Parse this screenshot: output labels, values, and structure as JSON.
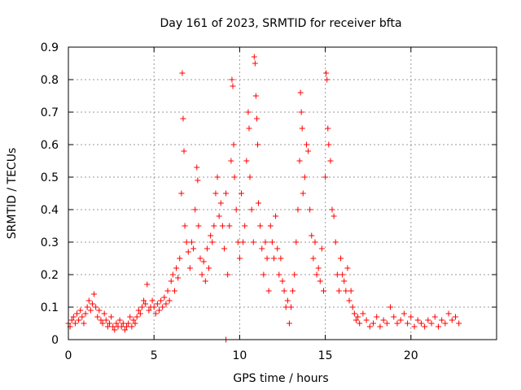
{
  "chart_data": {
    "type": "scatter",
    "title": "Day 161 of 2023, SRMTID for receiver bfta",
    "xlabel": "GPS time / hours",
    "ylabel": "SRMTID / TECUs",
    "xlim": [
      0,
      25
    ],
    "ylim": [
      0,
      0.9
    ],
    "x_ticks": [
      0,
      5,
      10,
      15,
      20
    ],
    "y_ticks": [
      0,
      0.1,
      0.2,
      0.3,
      0.4,
      0.5,
      0.6,
      0.7,
      0.8,
      0.9
    ],
    "x_tick_labels": [
      "0",
      "5",
      "10",
      "15",
      "20"
    ],
    "y_tick_labels": [
      "0",
      "0.1",
      "0.2",
      "0.3",
      "0.4",
      "0.5",
      "0.6",
      "0.7",
      "0.8",
      "0.9"
    ],
    "grid": true,
    "marker": "+",
    "marker_color": "#ff0000",
    "series": [
      {
        "name": "SRMTID",
        "color": "#ff0000",
        "points": [
          [
            0.0,
            0.05
          ],
          [
            0.1,
            0.04
          ],
          [
            0.2,
            0.06
          ],
          [
            0.3,
            0.07
          ],
          [
            0.4,
            0.05
          ],
          [
            0.5,
            0.08
          ],
          [
            0.6,
            0.06
          ],
          [
            0.7,
            0.09
          ],
          [
            0.8,
            0.07
          ],
          [
            0.9,
            0.05
          ],
          [
            1.0,
            0.08
          ],
          [
            1.1,
            0.1
          ],
          [
            1.2,
            0.12
          ],
          [
            1.3,
            0.09
          ],
          [
            1.4,
            0.11
          ],
          [
            1.5,
            0.14
          ],
          [
            1.6,
            0.1
          ],
          [
            1.7,
            0.07
          ],
          [
            1.8,
            0.09
          ],
          [
            1.9,
            0.06
          ],
          [
            2.0,
            0.05
          ],
          [
            2.1,
            0.08
          ],
          [
            2.2,
            0.06
          ],
          [
            2.3,
            0.04
          ],
          [
            2.4,
            0.05
          ],
          [
            2.5,
            0.07
          ],
          [
            2.6,
            0.04
          ],
          [
            2.7,
            0.03
          ],
          [
            2.8,
            0.05
          ],
          [
            2.9,
            0.04
          ],
          [
            3.0,
            0.06
          ],
          [
            3.1,
            0.04
          ],
          [
            3.2,
            0.05
          ],
          [
            3.3,
            0.03
          ],
          [
            3.4,
            0.04
          ],
          [
            3.5,
            0.05
          ],
          [
            3.6,
            0.07
          ],
          [
            3.7,
            0.04
          ],
          [
            3.8,
            0.06
          ],
          [
            3.9,
            0.05
          ],
          [
            4.0,
            0.07
          ],
          [
            4.1,
            0.09
          ],
          [
            4.2,
            0.08
          ],
          [
            4.3,
            0.1
          ],
          [
            4.4,
            0.12
          ],
          [
            4.5,
            0.11
          ],
          [
            4.6,
            0.17
          ],
          [
            4.7,
            0.09
          ],
          [
            4.8,
            0.1
          ],
          [
            4.9,
            0.12
          ],
          [
            5.0,
            0.1
          ],
          [
            5.1,
            0.08
          ],
          [
            5.2,
            0.11
          ],
          [
            5.3,
            0.09
          ],
          [
            5.4,
            0.12
          ],
          [
            5.5,
            0.1
          ],
          [
            5.6,
            0.13
          ],
          [
            5.7,
            0.11
          ],
          [
            5.8,
            0.15
          ],
          [
            5.9,
            0.12
          ],
          [
            6.0,
            0.18
          ],
          [
            6.1,
            0.2
          ],
          [
            6.2,
            0.15
          ],
          [
            6.3,
            0.22
          ],
          [
            6.4,
            0.19
          ],
          [
            6.5,
            0.25
          ],
          [
            6.6,
            0.45
          ],
          [
            6.65,
            0.82
          ],
          [
            6.7,
            0.68
          ],
          [
            6.75,
            0.58
          ],
          [
            6.8,
            0.35
          ],
          [
            6.9,
            0.3
          ],
          [
            7.0,
            0.27
          ],
          [
            7.1,
            0.22
          ],
          [
            7.2,
            0.3
          ],
          [
            7.3,
            0.28
          ],
          [
            7.4,
            0.4
          ],
          [
            7.5,
            0.53
          ],
          [
            7.55,
            0.49
          ],
          [
            7.6,
            0.35
          ],
          [
            7.7,
            0.25
          ],
          [
            7.8,
            0.2
          ],
          [
            7.9,
            0.24
          ],
          [
            8.0,
            0.18
          ],
          [
            8.1,
            0.28
          ],
          [
            8.2,
            0.22
          ],
          [
            8.3,
            0.32
          ],
          [
            8.4,
            0.3
          ],
          [
            8.5,
            0.35
          ],
          [
            8.6,
            0.45
          ],
          [
            8.7,
            0.5
          ],
          [
            8.8,
            0.38
          ],
          [
            8.9,
            0.42
          ],
          [
            9.0,
            0.35
          ],
          [
            9.1,
            0.28
          ],
          [
            9.2,
            0.45
          ],
          [
            9.3,
            0.2
          ],
          [
            9.4,
            0.35
          ],
          [
            9.5,
            0.55
          ],
          [
            9.55,
            0.8
          ],
          [
            9.6,
            0.78
          ],
          [
            9.65,
            0.6
          ],
          [
            9.7,
            0.5
          ],
          [
            9.8,
            0.4
          ],
          [
            9.9,
            0.3
          ],
          [
            10.0,
            0.25
          ],
          [
            10.1,
            0.45
          ],
          [
            10.2,
            0.3
          ],
          [
            10.3,
            0.35
          ],
          [
            10.4,
            0.55
          ],
          [
            10.5,
            0.7
          ],
          [
            10.55,
            0.65
          ],
          [
            10.6,
            0.5
          ],
          [
            10.7,
            0.4
          ],
          [
            10.8,
            0.3
          ],
          [
            10.85,
            0.87
          ],
          [
            10.9,
            0.85
          ],
          [
            10.95,
            0.75
          ],
          [
            11.0,
            0.68
          ],
          [
            11.05,
            0.6
          ],
          [
            11.1,
            0.42
          ],
          [
            11.2,
            0.35
          ],
          [
            11.3,
            0.28
          ],
          [
            11.4,
            0.2
          ],
          [
            11.5,
            0.3
          ],
          [
            11.6,
            0.25
          ],
          [
            11.7,
            0.15
          ],
          [
            11.8,
            0.35
          ],
          [
            11.9,
            0.3
          ],
          [
            12.0,
            0.25
          ],
          [
            12.1,
            0.38
          ],
          [
            12.2,
            0.28
          ],
          [
            12.3,
            0.2
          ],
          [
            12.4,
            0.25
          ],
          [
            12.5,
            0.18
          ],
          [
            12.6,
            0.15
          ],
          [
            12.7,
            0.1
          ],
          [
            12.8,
            0.12
          ],
          [
            12.9,
            0.05
          ],
          [
            13.0,
            0.1
          ],
          [
            13.1,
            0.15
          ],
          [
            13.2,
            0.2
          ],
          [
            13.3,
            0.3
          ],
          [
            13.4,
            0.4
          ],
          [
            13.5,
            0.55
          ],
          [
            13.55,
            0.76
          ],
          [
            13.6,
            0.7
          ],
          [
            13.65,
            0.65
          ],
          [
            13.7,
            0.45
          ],
          [
            13.8,
            0.5
          ],
          [
            13.9,
            0.6
          ],
          [
            14.0,
            0.58
          ],
          [
            14.1,
            0.4
          ],
          [
            14.2,
            0.32
          ],
          [
            14.3,
            0.25
          ],
          [
            14.4,
            0.3
          ],
          [
            14.5,
            0.2
          ],
          [
            14.6,
            0.22
          ],
          [
            14.7,
            0.18
          ],
          [
            14.8,
            0.28
          ],
          [
            14.9,
            0.15
          ],
          [
            15.0,
            0.5
          ],
          [
            15.05,
            0.82
          ],
          [
            15.1,
            0.8
          ],
          [
            15.15,
            0.65
          ],
          [
            15.2,
            0.6
          ],
          [
            15.3,
            0.55
          ],
          [
            15.4,
            0.4
          ],
          [
            15.5,
            0.38
          ],
          [
            15.6,
            0.3
          ],
          [
            15.7,
            0.2
          ],
          [
            15.8,
            0.15
          ],
          [
            15.9,
            0.25
          ],
          [
            16.0,
            0.2
          ],
          [
            16.1,
            0.18
          ],
          [
            16.2,
            0.15
          ],
          [
            16.3,
            0.22
          ],
          [
            16.4,
            0.12
          ],
          [
            16.5,
            0.15
          ],
          [
            16.6,
            0.1
          ],
          [
            16.7,
            0.08
          ],
          [
            16.8,
            0.06
          ],
          [
            16.9,
            0.07
          ],
          [
            17.0,
            0.05
          ],
          [
            17.2,
            0.08
          ],
          [
            17.4,
            0.06
          ],
          [
            17.6,
            0.04
          ],
          [
            17.8,
            0.05
          ],
          [
            18.0,
            0.07
          ],
          [
            18.2,
            0.04
          ],
          [
            18.4,
            0.06
          ],
          [
            18.6,
            0.05
          ],
          [
            18.8,
            0.1
          ],
          [
            19.0,
            0.07
          ],
          [
            19.2,
            0.05
          ],
          [
            19.4,
            0.06
          ],
          [
            19.6,
            0.08
          ],
          [
            19.8,
            0.05
          ],
          [
            20.0,
            0.07
          ],
          [
            20.2,
            0.04
          ],
          [
            20.4,
            0.06
          ],
          [
            20.6,
            0.05
          ],
          [
            20.8,
            0.04
          ],
          [
            21.0,
            0.06
          ],
          [
            21.2,
            0.05
          ],
          [
            21.4,
            0.07
          ],
          [
            21.6,
            0.04
          ],
          [
            21.8,
            0.06
          ],
          [
            22.0,
            0.05
          ],
          [
            22.2,
            0.08
          ],
          [
            22.4,
            0.06
          ],
          [
            22.6,
            0.07
          ],
          [
            22.8,
            0.05
          ],
          [
            9.2,
            0.0
          ]
        ]
      }
    ]
  }
}
